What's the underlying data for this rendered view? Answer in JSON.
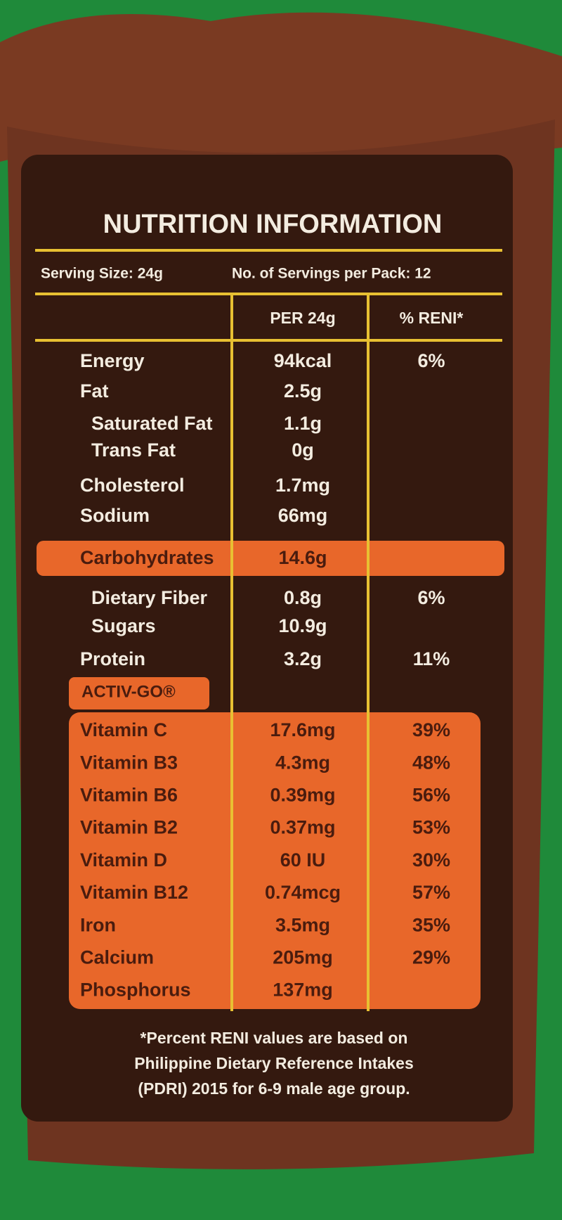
{
  "header": {
    "title": "NUTRITION INFORMATION",
    "serving_size": "Serving Size: 24g",
    "servings_per_pack": "No. of Servings per Pack: 12"
  },
  "table": {
    "columns": [
      "PER 24g",
      "% RENI*"
    ],
    "nutrients": [
      {
        "name": "Energy",
        "amount": "94kcal",
        "reni": "6%"
      },
      {
        "name": "Fat",
        "amount": "2.5g",
        "sub": [
          {
            "name": "Saturated Fat",
            "amount": "1.1g"
          },
          {
            "name": "Trans Fat",
            "amount": "0g"
          }
        ]
      },
      {
        "name": "Cholesterol",
        "amount": "1.7mg"
      },
      {
        "name": "Sodium",
        "amount": "66mg"
      },
      {
        "name": "Carbohydrates",
        "amount": "14.6g",
        "sub": [
          {
            "name": "Dietary Fiber",
            "amount": "0.8g",
            "reni": "6%"
          },
          {
            "name": "Sugars",
            "amount": "10.9g"
          }
        ]
      },
      {
        "name": "Protein",
        "amount": "3.2g",
        "reni": "11%"
      }
    ],
    "section_title": "ACTIV-GO®",
    "vitamins": [
      {
        "name": "Vitamin C",
        "amount": "17.6mg",
        "reni": "39%"
      },
      {
        "name": "Vitamin B3",
        "amount": "4.3mg",
        "reni": "48%"
      },
      {
        "name": "Vitamin B6",
        "amount": "0.39mg",
        "reni": "56%"
      },
      {
        "name": "Vitamin B2",
        "amount": "0.37mg",
        "reni": "53%"
      },
      {
        "name": "Vitamin D",
        "amount": "60 IU",
        "reni": "30%"
      },
      {
        "name": "Vitamin B12",
        "amount": "0.74mcg",
        "reni": "57%"
      },
      {
        "name": "Iron",
        "amount": "3.5mg",
        "reni": "35%"
      },
      {
        "name": "Calcium",
        "amount": "205mg",
        "reni": "29%"
      },
      {
        "name": "Phosphorus",
        "amount": "137mg"
      }
    ]
  },
  "footnote": [
    "*Percent RENI values are based on",
    "Philippine Dietary Reference Intakes",
    "(PDRI) 2015 for 6-9 male age group."
  ]
}
